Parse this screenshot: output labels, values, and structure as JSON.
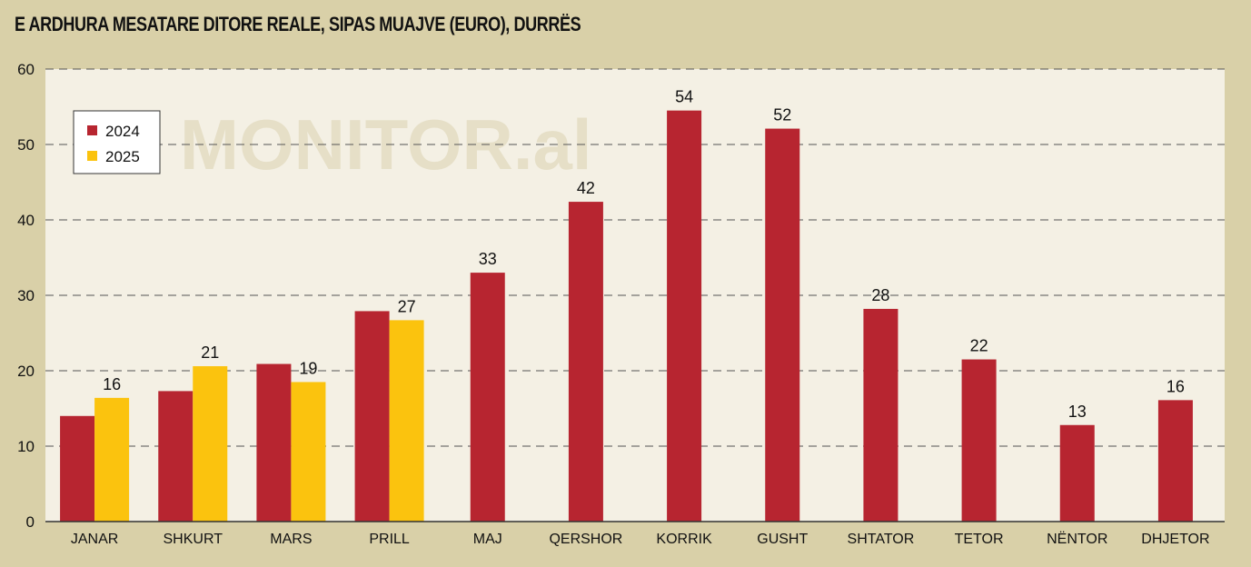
{
  "chart_data": {
    "type": "bar",
    "title": "E ARDHURA MESATARE DITORE REALE, SIPAS MUAJVE (EURO), DURRËS",
    "watermark": "MONITOR.al",
    "categories": [
      "JANAR",
      "SHKURT",
      "MARS",
      "PRILL",
      "MAJ",
      "QERSHOR",
      "KORRIK",
      "GUSHT",
      "SHTATOR",
      "TETOR",
      "NËNTOR",
      "DHJETOR"
    ],
    "series": [
      {
        "name": "2024",
        "color": "#b72530",
        "values": [
          14,
          17.3,
          20.9,
          27.9,
          33,
          42.4,
          54.5,
          52.1,
          28.2,
          21.5,
          12.8,
          16.1
        ],
        "labels": [
          "",
          "",
          "",
          "",
          "33",
          "42",
          "54",
          "52",
          "28",
          "22",
          "13",
          "16"
        ]
      },
      {
        "name": "2025",
        "color": "#fbc30e",
        "values": [
          16.4,
          20.6,
          18.5,
          26.7,
          null,
          null,
          null,
          null,
          null,
          null,
          null,
          null
        ],
        "labels": [
          "16",
          "21",
          "19",
          "27",
          "",
          "",
          "",
          "",
          "",
          "",
          "",
          ""
        ]
      }
    ],
    "ylim": [
      0,
      60
    ],
    "yticks": [
      0,
      10,
      20,
      30,
      40,
      50,
      60
    ],
    "xlabel": "",
    "ylabel": "",
    "grid": true,
    "legend": "top-left"
  }
}
